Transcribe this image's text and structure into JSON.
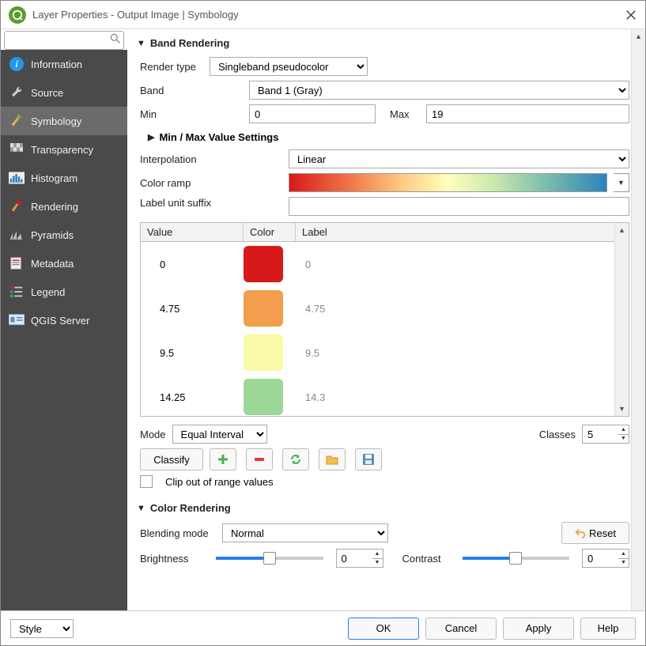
{
  "window": {
    "title": "Layer Properties - Output Image | Symbology"
  },
  "sidebar": {
    "search_placeholder": "",
    "items": [
      {
        "label": "Information"
      },
      {
        "label": "Source"
      },
      {
        "label": "Symbology"
      },
      {
        "label": "Transparency"
      },
      {
        "label": "Histogram"
      },
      {
        "label": "Rendering"
      },
      {
        "label": "Pyramids"
      },
      {
        "label": "Metadata"
      },
      {
        "label": "Legend"
      },
      {
        "label": "QGIS Server"
      }
    ],
    "active_index": 2
  },
  "band_rendering": {
    "header": "Band Rendering",
    "render_type_label": "Render type",
    "render_type_value": "Singleband pseudocolor",
    "band_label": "Band",
    "band_value": "Band 1 (Gray)",
    "min_label": "Min",
    "min_value": "0",
    "max_label": "Max",
    "max_value": "19",
    "minmax_header": "Min / Max Value Settings",
    "interpolation_label": "Interpolation",
    "interpolation_value": "Linear",
    "color_ramp_label": "Color ramp",
    "color_ramp_gradient": [
      "#d7191c",
      "#f07c4a",
      "#fdc980",
      "#ffffbf",
      "#c7e8ad",
      "#80bfab",
      "#2b83ba"
    ],
    "label_suffix_label": "Label unit suffix",
    "label_suffix_value": "",
    "table": {
      "columns": [
        "Value",
        "Color",
        "Label"
      ],
      "rows": [
        {
          "value": "0",
          "color": "#d7191c",
          "label": "0"
        },
        {
          "value": "4.75",
          "color": "#f29e4c",
          "label": "4.75"
        },
        {
          "value": "9.5",
          "color": "#fafaa8",
          "label": "9.5"
        },
        {
          "value": "14.25",
          "color": "#9dd798",
          "label": "14.3"
        }
      ]
    },
    "mode_label": "Mode",
    "mode_value": "Equal Interval",
    "classes_label": "Classes",
    "classes_value": "5",
    "classify_label": "Classify",
    "clip_label": "Clip out of range values",
    "tool_icons": [
      "plus",
      "minus",
      "refresh",
      "folder",
      "save"
    ]
  },
  "color_rendering": {
    "header": "Color Rendering",
    "blending_label": "Blending mode",
    "blending_value": "Normal",
    "reset_label": "Reset",
    "brightness_label": "Brightness",
    "brightness_value": "0",
    "brightness_pct": 50,
    "contrast_label": "Contrast",
    "contrast_value": "0",
    "contrast_pct": 50
  },
  "buttons": {
    "style": "Style",
    "ok": "OK",
    "cancel": "Cancel",
    "apply": "Apply",
    "help": "Help"
  }
}
